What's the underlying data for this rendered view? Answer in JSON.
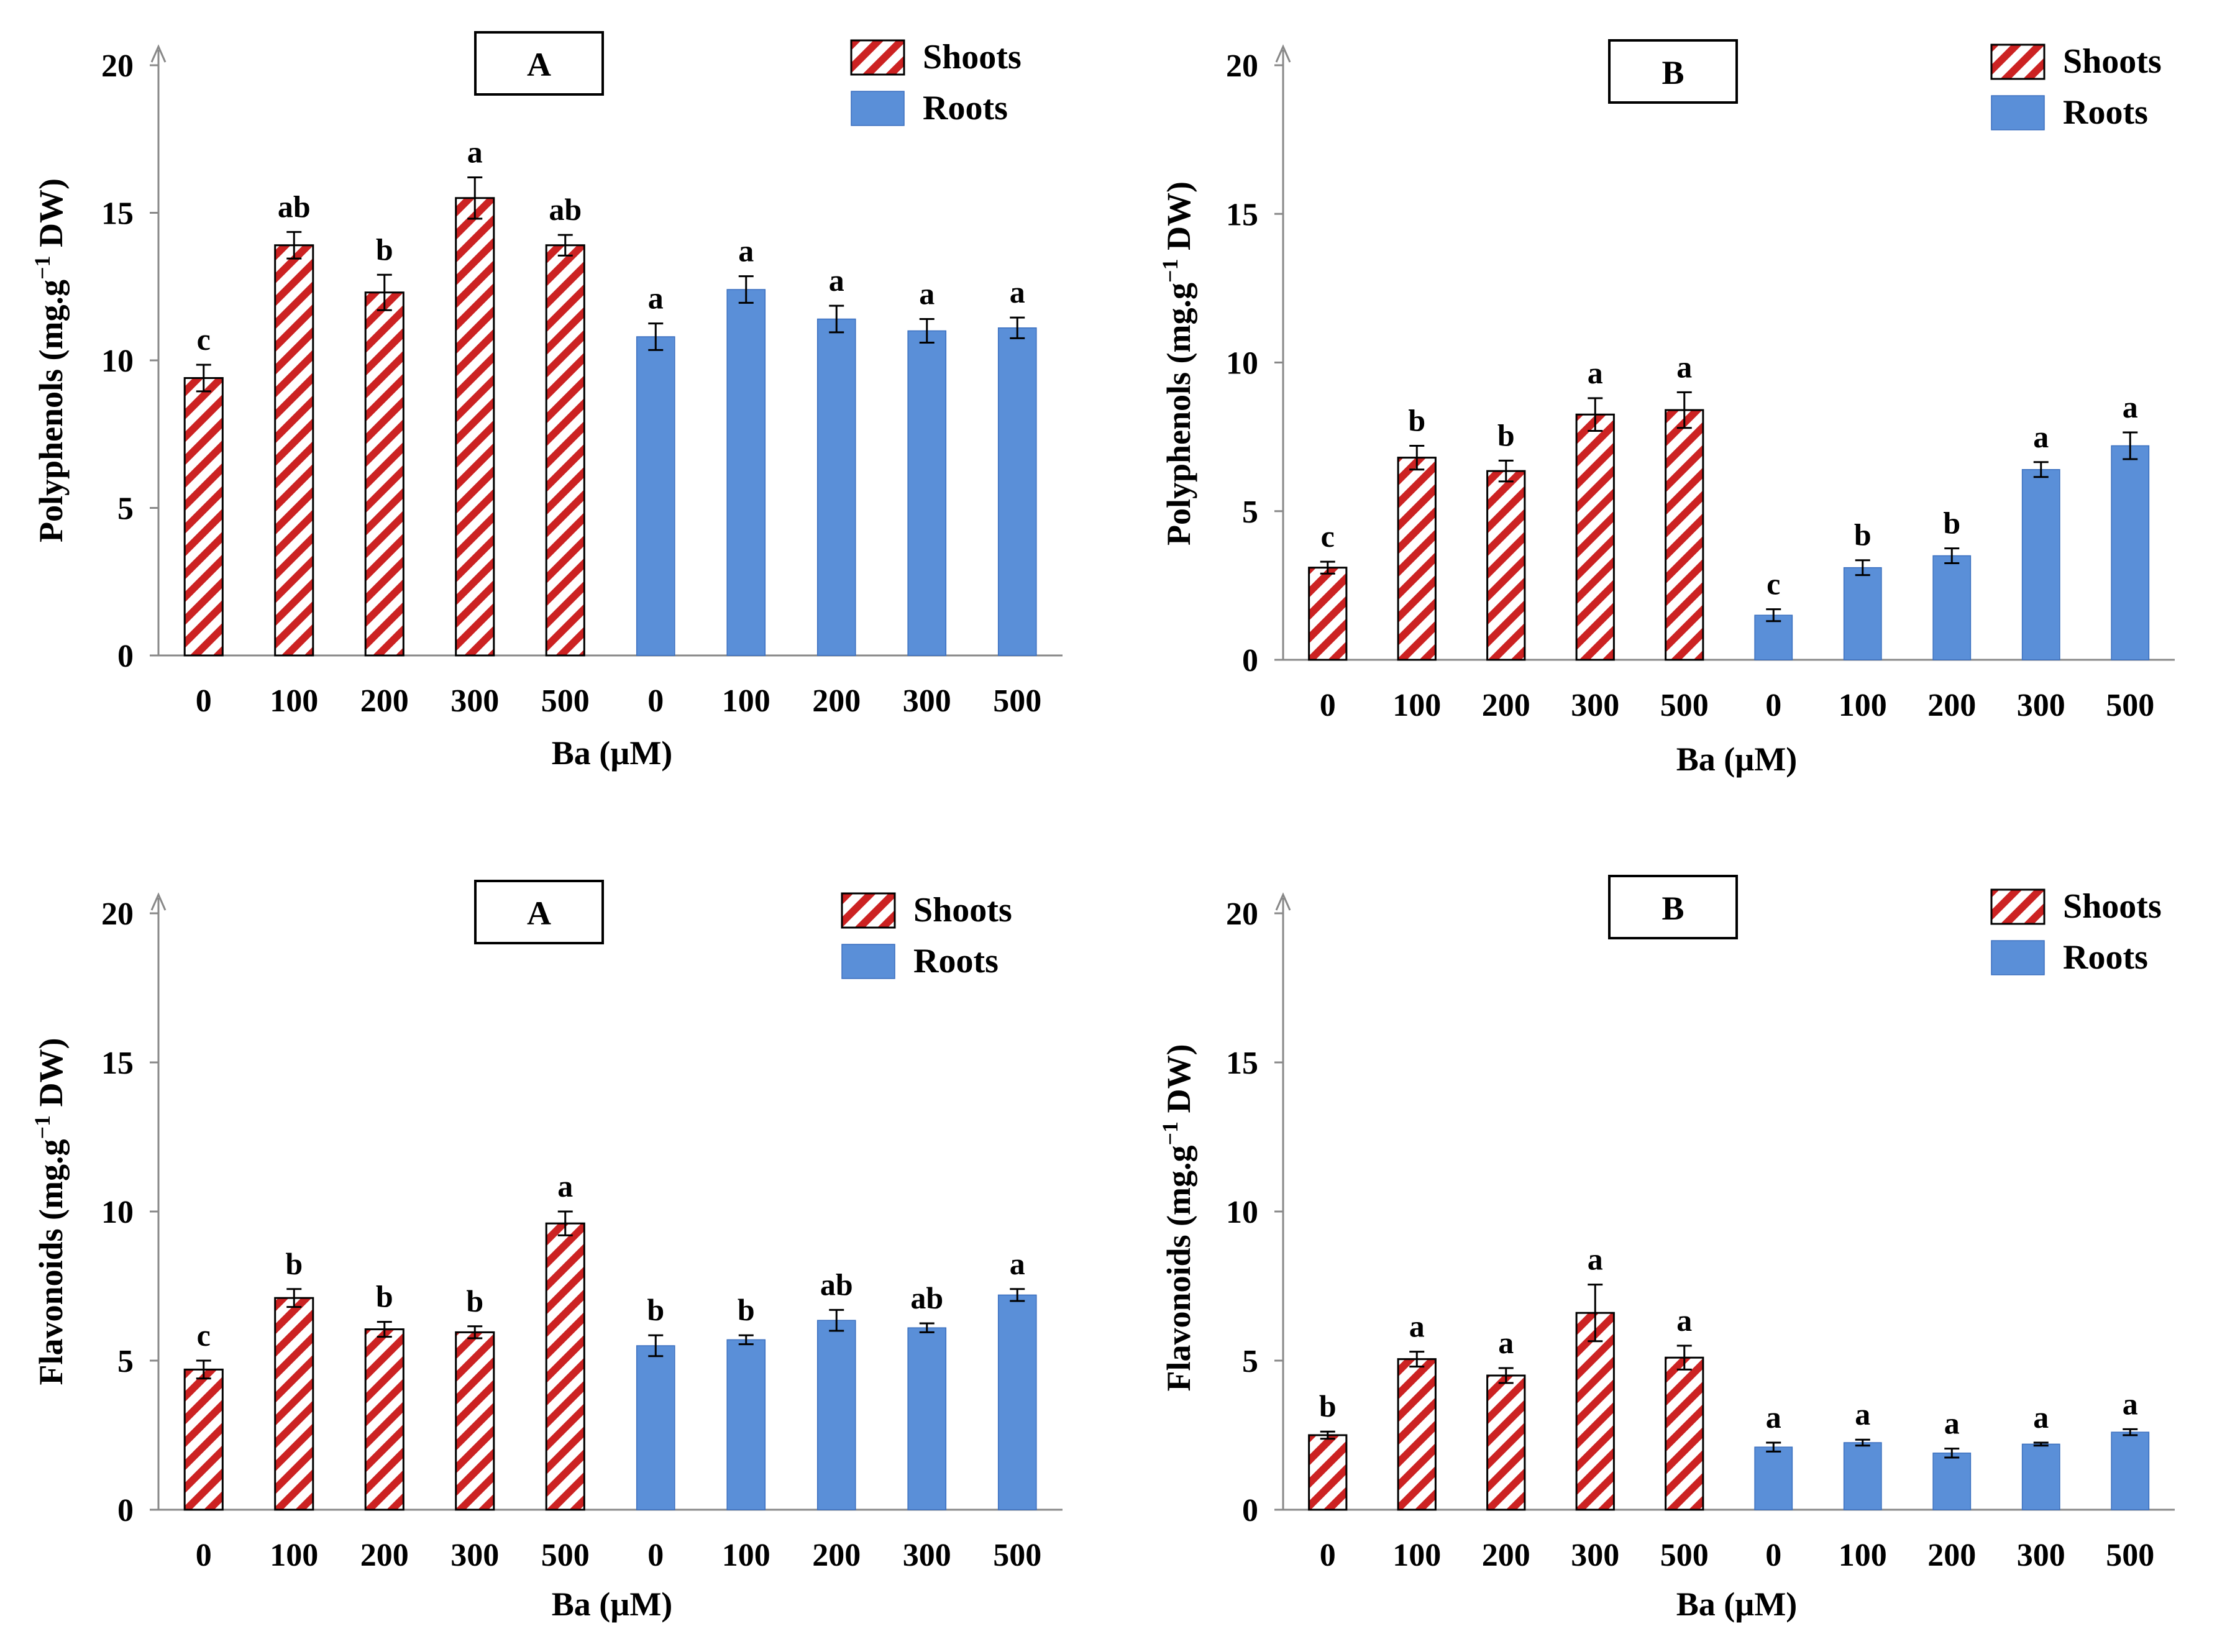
{
  "colors": {
    "shoots": "#cc2222",
    "roots": "#5a8fd8",
    "axis": "#888888",
    "text": "#000000"
  },
  "chart_data": [
    {
      "type": "bar",
      "panel_label": "A",
      "ylabel": "Polyphenols (mg.g",
      "ylabel_sup": "−1",
      "ylabel_tail": " DW)",
      "xlabel": "Ba (µM)",
      "ylim": [
        0,
        20
      ],
      "yticks": [
        "0",
        "5",
        "10",
        "15",
        "20"
      ],
      "legend": {
        "shoots": "Shoots",
        "roots": "Roots"
      },
      "categories": [
        "0",
        "100",
        "200",
        "300",
        "500",
        "0",
        "100",
        "200",
        "300",
        "500"
      ],
      "groups": [
        "shoots",
        "shoots",
        "shoots",
        "shoots",
        "shoots",
        "roots",
        "roots",
        "roots",
        "roots",
        "roots"
      ],
      "values": [
        9.4,
        13.9,
        12.3,
        15.5,
        13.9,
        10.8,
        12.4,
        11.4,
        11.0,
        11.1
      ],
      "errors": [
        0.45,
        0.45,
        0.6,
        0.7,
        0.35,
        0.45,
        0.45,
        0.45,
        0.4,
        0.35
      ],
      "significance": [
        "c",
        "ab",
        "b",
        "a",
        "ab",
        "a",
        "a",
        "a",
        "a",
        "a"
      ]
    },
    {
      "type": "bar",
      "panel_label": "B",
      "ylabel": "Polyphenols (mg.g",
      "ylabel_sup": "−1",
      "ylabel_tail": " DW)",
      "xlabel": "Ba (µM)",
      "ylim": [
        0,
        20
      ],
      "yticks": [
        "0",
        "5",
        "10",
        "15",
        "20"
      ],
      "legend": {
        "shoots": "Shoots",
        "roots": "Roots"
      },
      "categories": [
        "0",
        "100",
        "200",
        "300",
        "500",
        "0",
        "100",
        "200",
        "300",
        "500"
      ],
      "groups": [
        "shoots",
        "shoots",
        "shoots",
        "shoots",
        "shoots",
        "roots",
        "roots",
        "roots",
        "roots",
        "roots"
      ],
      "values": [
        3.1,
        6.8,
        6.35,
        8.25,
        8.4,
        1.5,
        3.1,
        3.5,
        6.4,
        7.2
      ],
      "errors": [
        0.2,
        0.4,
        0.35,
        0.55,
        0.6,
        0.2,
        0.25,
        0.25,
        0.25,
        0.45
      ],
      "significance": [
        "c",
        "b",
        "b",
        "a",
        "a",
        "c",
        "b",
        "b",
        "a",
        "a"
      ]
    },
    {
      "type": "bar",
      "panel_label": "A",
      "ylabel": "Flavonoids (mg.g",
      "ylabel_sup": "−1",
      "ylabel_tail": " DW)",
      "xlabel": "Ba (µM)",
      "ylim": [
        0,
        20
      ],
      "yticks": [
        "0",
        "5",
        "10",
        "15",
        "20"
      ],
      "legend": {
        "shoots": "Shoots",
        "roots": "Roots"
      },
      "categories": [
        "0",
        "100",
        "200",
        "300",
        "500",
        "0",
        "100",
        "200",
        "300",
        "500"
      ],
      "groups": [
        "shoots",
        "shoots",
        "shoots",
        "shoots",
        "shoots",
        "roots",
        "roots",
        "roots",
        "roots",
        "roots"
      ],
      "values": [
        4.7,
        7.1,
        6.05,
        5.95,
        9.6,
        5.5,
        5.7,
        6.35,
        6.1,
        7.2
      ],
      "errors": [
        0.3,
        0.3,
        0.25,
        0.2,
        0.4,
        0.35,
        0.15,
        0.35,
        0.15,
        0.2
      ],
      "significance": [
        "c",
        "b",
        "b",
        "b",
        "a",
        "b",
        "b",
        "ab",
        "ab",
        "a"
      ]
    },
    {
      "type": "bar",
      "panel_label": "B",
      "ylabel": "Flavonoids (mg.g",
      "ylabel_sup": "−1",
      "ylabel_tail": " DW)",
      "xlabel": "Ba (µM)",
      "ylim": [
        0,
        20
      ],
      "yticks": [
        "0",
        "5",
        "10",
        "15",
        "20"
      ],
      "legend": {
        "shoots": "Shoots",
        "roots": "Roots"
      },
      "categories": [
        "0",
        "100",
        "200",
        "300",
        "500",
        "0",
        "100",
        "200",
        "300",
        "500"
      ],
      "groups": [
        "shoots",
        "shoots",
        "shoots",
        "shoots",
        "shoots",
        "roots",
        "roots",
        "roots",
        "roots",
        "roots"
      ],
      "values": [
        2.5,
        5.05,
        4.5,
        6.6,
        5.1,
        2.1,
        2.25,
        1.9,
        2.2,
        2.6
      ],
      "errors": [
        0.12,
        0.25,
        0.25,
        0.95,
        0.4,
        0.15,
        0.1,
        0.15,
        0.05,
        0.1
      ],
      "significance": [
        "b",
        "a",
        "a",
        "a",
        "a",
        "a",
        "a",
        "a",
        "a",
        "a"
      ]
    }
  ]
}
